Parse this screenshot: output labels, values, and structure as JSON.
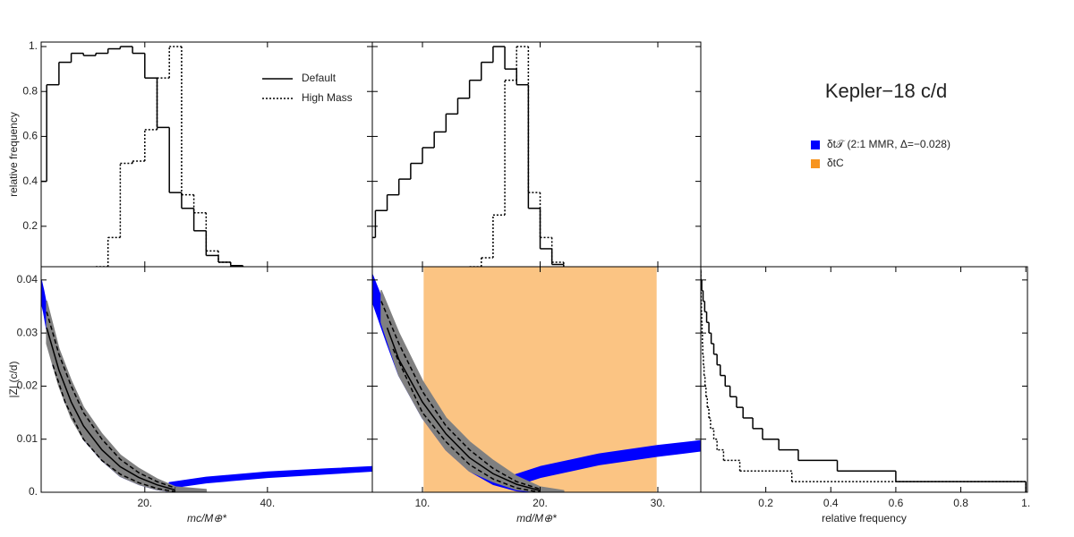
{
  "figure": {
    "title": "Kepler−18 c/d",
    "legend": [
      {
        "name": "δt𝒯 (2:1 MMR, Δ=−0.028)",
        "color": "#0000ff"
      },
      {
        "name": "δtC",
        "color": "#f7941e"
      }
    ]
  },
  "chart_data": [
    {
      "type": "histogram",
      "orientation": "vertical",
      "ylabel": "relative frequency",
      "legend": "upper right",
      "bins": [
        2,
        4,
        6,
        8,
        10,
        12,
        14,
        16,
        18,
        20,
        22,
        24,
        26,
        28,
        30,
        32,
        34,
        36,
        38,
        40,
        42,
        44,
        46,
        48,
        50
      ],
      "series": [
        {
          "name": "Default",
          "style": "solid",
          "color": "#000000",
          "values": [
            0.4,
            0.83,
            0.93,
            0.97,
            0.96,
            0.97,
            0.99,
            1.0,
            0.97,
            0.86,
            0.64,
            0.35,
            0.28,
            0.18,
            0.07,
            0.04,
            0.025,
            0.015,
            0.01,
            0.008,
            0.005,
            0.003,
            0,
            0
          ]
        },
        {
          "name": "High Mass",
          "style": "dotted",
          "color": "#000000",
          "values": [
            0,
            0,
            0,
            0,
            0,
            0.02,
            0.15,
            0.48,
            0.49,
            0.63,
            0.86,
            1.0,
            0.34,
            0.26,
            0.09,
            0.04,
            0.02,
            0.01,
            0.005,
            0,
            0,
            0,
            0,
            0
          ]
        }
      ],
      "xlim": [
        3.1,
        57.1
      ],
      "xticks": [
        20,
        40
      ],
      "xtick_labels": false,
      "ylim": [
        0.02,
        1.02
      ],
      "yticks": [
        0.2,
        0.4,
        0.6,
        0.8,
        {
          "value": 1,
          "label": "1."
        }
      ],
      "ytick_labels": true
    },
    {
      "type": "histogram",
      "orientation": "vertical",
      "bins": [
        5,
        6,
        7,
        8,
        9,
        10,
        11,
        12,
        13,
        14,
        15,
        16,
        17,
        18,
        19,
        20,
        21,
        22,
        23,
        24,
        25
      ],
      "series": [
        {
          "style": "solid",
          "color": "#000000",
          "values": [
            0.15,
            0.27,
            0.34,
            0.41,
            0.48,
            0.55,
            0.62,
            0.7,
            0.77,
            0.85,
            0.93,
            1.0,
            0.9,
            0.83,
            0.28,
            0.1,
            0.03,
            0.01,
            0.005,
            0
          ]
        },
        {
          "style": "dotted",
          "color": "#000000",
          "values": [
            0,
            0,
            0,
            0,
            0,
            0,
            0,
            0,
            0,
            0.02,
            0.06,
            0.25,
            0.85,
            1.0,
            0.35,
            0.15,
            0.04,
            0.01,
            0,
            0
          ]
        }
      ],
      "xlim": [
        5.74,
        33.65
      ],
      "xticks": [
        10,
        20,
        30
      ],
      "xtick_labels": false,
      "ylim": [
        0.02,
        1.02
      ],
      "yticks": [
        0.2,
        0.4,
        0.6,
        0.8,
        1
      ],
      "ytick_labels": false
    },
    {
      "type": "band",
      "xlabel": "mc/M⊕*",
      "ylabel": "|Z| (c/d)",
      "bands": [
        {
          "color": "#0000ff",
          "x": [
            3.1,
            3.5,
            5,
            7,
            10,
            13,
            16,
            19,
            22,
            25
          ],
          "lower": [
            0.036,
            0.034,
            0.024,
            0.017,
            0.01,
            0.006,
            0.003,
            0.0015,
            0.0005,
            0.0
          ],
          "upper": [
            0.04,
            0.038,
            0.029,
            0.021,
            0.014,
            0.009,
            0.0055,
            0.003,
            0.0015,
            0.0005
          ]
        },
        {
          "color": "#0000ff",
          "x": [
            24,
            30,
            40,
            50,
            57.1
          ],
          "lower": [
            0.0008,
            0.0018,
            0.0028,
            0.0035,
            0.004
          ],
          "upper": [
            0.0018,
            0.0028,
            0.0038,
            0.0044,
            0.0048
          ]
        },
        {
          "color": "#808080",
          "x": [
            4,
            6,
            8,
            10,
            13,
            16,
            19,
            22,
            25,
            30
          ],
          "lower": [
            0.028,
            0.02,
            0.014,
            0.01,
            0.006,
            0.003,
            0.0015,
            0.0005,
            0.0,
            0.0
          ],
          "upper": [
            0.036,
            0.027,
            0.021,
            0.016,
            0.011,
            0.007,
            0.0045,
            0.0025,
            0.001,
            0.0005
          ]
        }
      ],
      "lines": [
        {
          "style": "solid",
          "x": [
            4,
            6,
            8,
            10,
            13,
            16,
            19,
            22,
            25
          ],
          "y": [
            0.031,
            0.023,
            0.017,
            0.0125,
            0.008,
            0.0048,
            0.0028,
            0.0014,
            0.0004
          ]
        },
        {
          "style": "dashed",
          "x": [
            4,
            6,
            8,
            10,
            13,
            16,
            19,
            22,
            25
          ],
          "y": [
            0.034,
            0.026,
            0.02,
            0.015,
            0.01,
            0.0062,
            0.0037,
            0.002,
            0.0008
          ]
        },
        {
          "style": "dashed",
          "x": [
            5,
            7,
            10,
            13,
            16,
            19,
            22,
            25
          ],
          "y": [
            0.024,
            0.017,
            0.01,
            0.006,
            0.0034,
            0.0018,
            0.0007,
            0.0001
          ]
        }
      ],
      "xlim": [
        3.1,
        57.1
      ],
      "xticks": [
        {
          "value": 20,
          "label": "20."
        },
        {
          "value": 40,
          "label": "40."
        }
      ],
      "xtick_labels": true,
      "ylim": [
        0,
        0.0425
      ],
      "yticks": [
        {
          "value": 0,
          "label": "0."
        },
        0.01,
        0.02,
        0.03,
        0.04
      ],
      "ytick_labels": true
    },
    {
      "type": "band",
      "xlabel": "md/M⊕*",
      "shaded_region": {
        "color": "#f7941e",
        "opacity": 0.55,
        "x": [
          10.1,
          29.9
        ]
      },
      "bands": [
        {
          "color": "#0000ff",
          "x": [
            5.74,
            7,
            8,
            10,
            12,
            14,
            16,
            18,
            20
          ],
          "lower": [
            0.036,
            0.028,
            0.022,
            0.014,
            0.008,
            0.004,
            0.0015,
            0.0003,
            0.0
          ],
          "upper": [
            0.041,
            0.034,
            0.028,
            0.02,
            0.013,
            0.008,
            0.004,
            0.0015,
            0.0005
          ]
        },
        {
          "color": "#0000ff",
          "x": [
            17.5,
            20,
            25,
            30,
            33.65
          ],
          "lower": [
            0.001,
            0.0028,
            0.0052,
            0.0068,
            0.0078
          ],
          "upper": [
            0.003,
            0.0048,
            0.0072,
            0.0088,
            0.0097
          ]
        },
        {
          "color": "#808080",
          "x": [
            6.5,
            8,
            10,
            12,
            14,
            16,
            18,
            20,
            22
          ],
          "lower": [
            0.032,
            0.022,
            0.014,
            0.008,
            0.004,
            0.002,
            0.0005,
            0.0,
            0.0
          ],
          "upper": [
            0.038,
            0.03,
            0.021,
            0.014,
            0.0095,
            0.006,
            0.003,
            0.001,
            0.0003
          ]
        }
      ],
      "lines": [
        {
          "style": "solid",
          "x": [
            7,
            8,
            10,
            12,
            14,
            16,
            18,
            20
          ],
          "y": [
            0.031,
            0.025,
            0.017,
            0.011,
            0.0065,
            0.0035,
            0.0015,
            0.0003
          ]
        },
        {
          "style": "dashed",
          "x": [
            6.5,
            8,
            10,
            12,
            14,
            16,
            18,
            20
          ],
          "y": [
            0.036,
            0.028,
            0.019,
            0.0125,
            0.008,
            0.0045,
            0.002,
            0.0006
          ]
        },
        {
          "style": "dashed",
          "x": [
            7.5,
            10,
            12,
            14,
            16,
            18,
            20
          ],
          "y": [
            0.027,
            0.015,
            0.0095,
            0.0052,
            0.0025,
            0.0008,
            0.0
          ]
        }
      ],
      "xlim": [
        5.74,
        33.65
      ],
      "xticks": [
        {
          "value": 10,
          "label": "10."
        },
        {
          "value": 20,
          "label": "20."
        },
        {
          "value": 30,
          "label": "30."
        }
      ],
      "xtick_labels": true,
      "ylim": [
        0,
        0.0425
      ],
      "yticks": [
        0,
        0.01,
        0.02,
        0.03,
        0.04
      ],
      "ytick_labels": false
    },
    {
      "type": "histogram",
      "orientation": "horizontal",
      "xlabel": "relative frequency",
      "bins": [
        0,
        0.002,
        0.004,
        0.006,
        0.008,
        0.01,
        0.012,
        0.014,
        0.016,
        0.018,
        0.02,
        0.022,
        0.024,
        0.026,
        0.028,
        0.03,
        0.032,
        0.034,
        0.036,
        0.038,
        0.04,
        0.042
      ],
      "series": [
        {
          "style": "solid",
          "color": "#000000",
          "values": [
            1.0,
            0.6,
            0.42,
            0.3,
            0.24,
            0.19,
            0.16,
            0.13,
            0.11,
            0.09,
            0.075,
            0.06,
            0.05,
            0.04,
            0.032,
            0.025,
            0.018,
            0.012,
            0.007,
            0.003,
            0
          ]
        },
        {
          "style": "dotted",
          "color": "#000000",
          "values": [
            1.0,
            0.28,
            0.12,
            0.07,
            0.05,
            0.04,
            0.03,
            0.025,
            0.02,
            0.016,
            0.013,
            0.01,
            0.008,
            0.006,
            0.005,
            0.004,
            0.003,
            0.002,
            0.001,
            0.0005,
            0
          ]
        }
      ],
      "xlim": [
        0,
        1.005
      ],
      "xticks": [
        0.2,
        0.4,
        0.6,
        0.8,
        {
          "value": 1,
          "label": "1."
        }
      ],
      "xtick_labels": true,
      "ylim": [
        0,
        0.0425
      ],
      "yticks": [
        0,
        0.01,
        0.02,
        0.03,
        0.04
      ],
      "ytick_labels": false
    }
  ]
}
